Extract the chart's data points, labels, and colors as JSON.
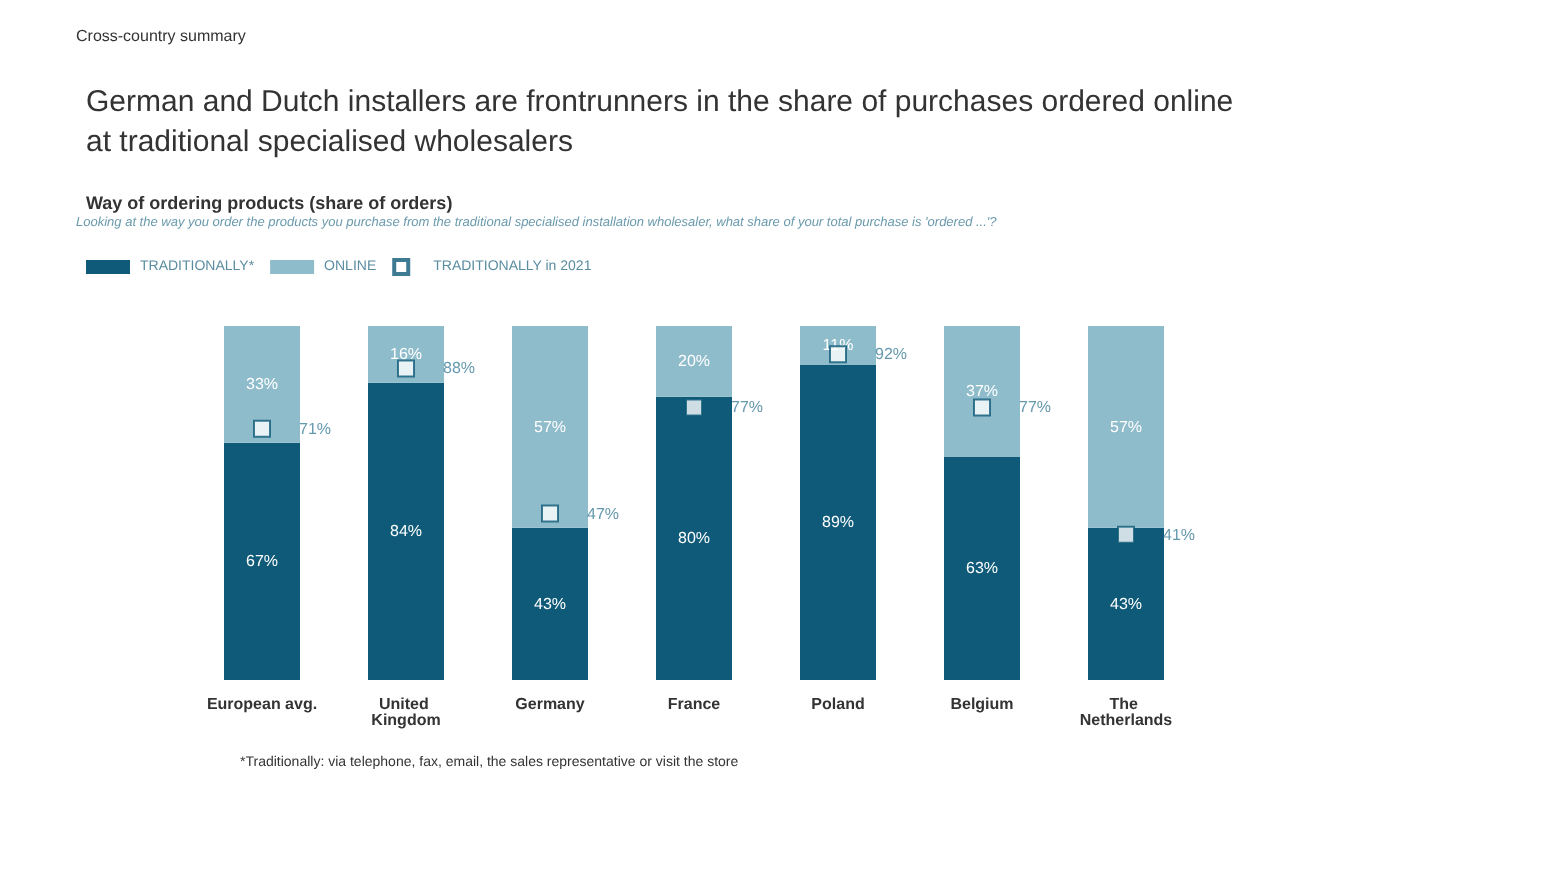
{
  "chart_data": {
    "type": "bar",
    "stacked": true,
    "title": "German and Dutch installers are frontrunners in the share of purchases ordered online at traditional specialised wholesalers",
    "subtitle": "Way of ordering products (share of orders)",
    "annotations": [
      "Cross-country summary",
      "Looking at the way you order the products you purchase from the traditional specialised installation wholesaler, what share of your total purchase is 'ordered ...'?",
      "*Traditionally: via telephone, fax, email, the sales representative or visit the store"
    ],
    "categories": [
      "European avg.",
      "United Kingdom",
      "Germany",
      "France",
      "Poland",
      "Belgium",
      "The Netherlands"
    ],
    "ylim": [
      0,
      100
    ],
    "legend": "top left",
    "tick_labels": "x",
    "series": [
      {
        "name": "TRADITIONALLY*",
        "color": "#0e5a78",
        "values": [
          67,
          84,
          43,
          80,
          89,
          63,
          43
        ],
        "value_labels": [
          "67%",
          "84%",
          "43%",
          "80%",
          "89%",
          "63%",
          "43%"
        ]
      },
      {
        "name": "ONLINE",
        "color": "#8fbccb",
        "values": [
          33,
          16,
          57,
          20,
          11,
          37,
          57
        ],
        "value_labels": [
          "33%",
          "16%",
          "57%",
          "20%",
          "11%",
          "37%",
          "57%"
        ]
      },
      {
        "name": "TRADITIONALLY in 2021",
        "type": "scatter",
        "marker": "square",
        "color": "#ffffff",
        "x": [
          "European avg.",
          "United Kingdom",
          "Germany",
          "France",
          "Poland",
          "Belgium",
          "The Netherlands"
        ],
        "values": [
          71,
          88,
          47,
          77,
          92,
          77,
          41
        ],
        "value_labels": [
          "71%",
          "88%",
          "47%",
          "77%",
          "92%",
          "77%",
          "41%"
        ]
      }
    ]
  }
}
